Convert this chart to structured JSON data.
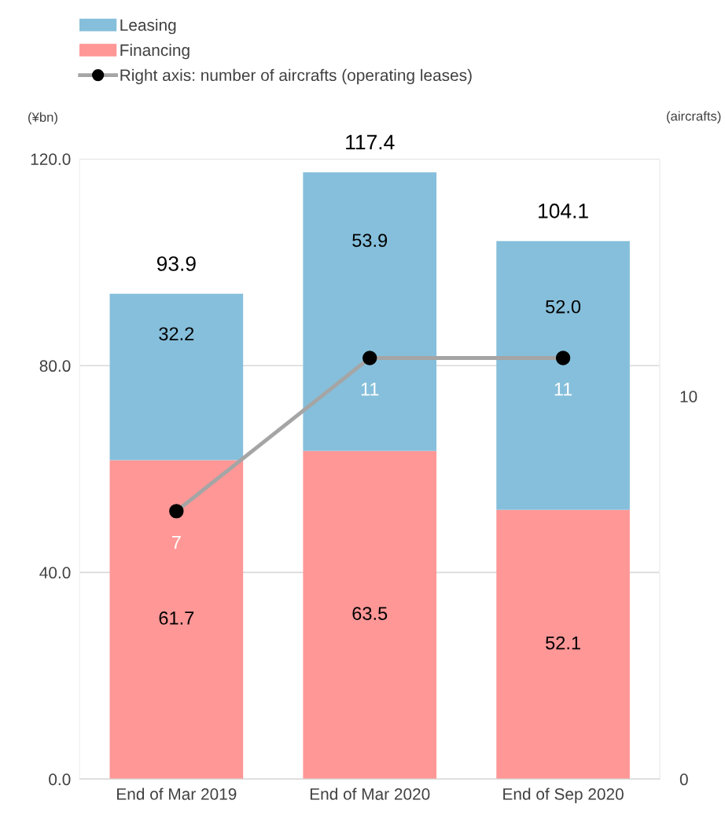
{
  "chart_data": {
    "type": "bar",
    "stacked": true,
    "categories": [
      "End of Mar 2019",
      "End of Mar 2020",
      "End of Sep 2020"
    ],
    "series": [
      {
        "name": "Financing",
        "color": "#ff9797",
        "values": [
          61.7,
          63.5,
          52.1
        ],
        "value_labels": [
          "61.7",
          "63.5",
          "52.1"
        ]
      },
      {
        "name": "Leasing",
        "color": "#86bfdb",
        "values": [
          32.2,
          53.9,
          52.0
        ],
        "value_labels": [
          "32.2",
          "53.9",
          "52.0"
        ]
      },
      {
        "name": "Right axis: number of aircrafts (operating leases)",
        "type": "line",
        "axis": "y2",
        "color": "#a5a5a5",
        "values": [
          7,
          11,
          11
        ]
      }
    ],
    "totals": [
      "93.9",
      "117.4",
      "104.1"
    ],
    "data_labels": true,
    "ylabel": "(¥bn)",
    "y2label": "(aircrafts)",
    "ylim": [
      0,
      120
    ],
    "yticks": [
      {
        "value": 0,
        "label": "0.0"
      },
      {
        "value": 40,
        "label": "40.0"
      },
      {
        "value": 80,
        "label": "80.0"
      },
      {
        "value": 120,
        "label": "120.0"
      }
    ],
    "y2lim": [
      0,
      16.2
    ],
    "y2ticks": [
      0,
      10
    ],
    "grid": "y",
    "legend": "top left",
    "marker": "circle",
    "line_style": "solid"
  }
}
